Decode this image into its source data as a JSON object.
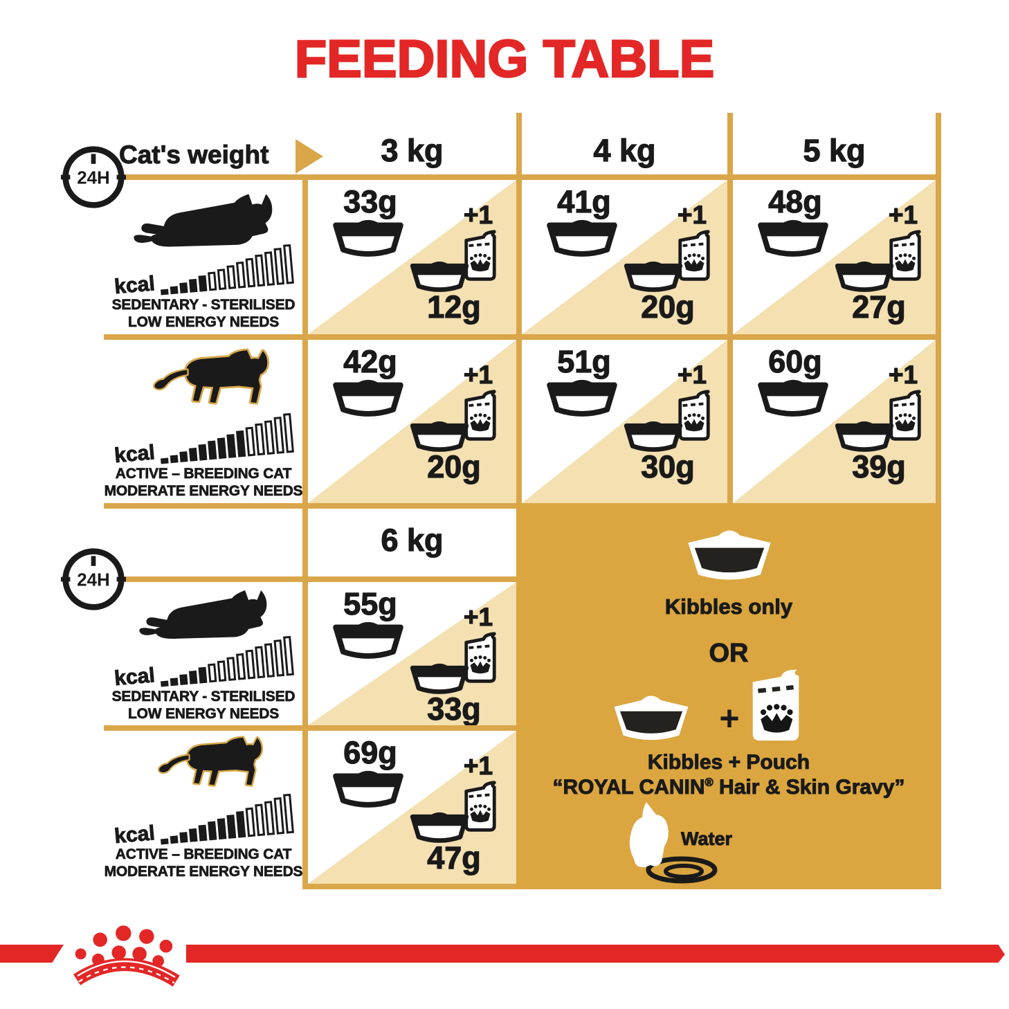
{
  "title": "FEEDING TABLE",
  "colors": {
    "red": "#E32726",
    "gold_line": "#DAA64A",
    "beige_triangle": "#F4E0B1",
    "legend_gold": "#DBA63F",
    "black": "#1A1A1A"
  },
  "header": {
    "row_label": "Cat's weight",
    "clock_label": "24H",
    "columns": [
      "3 kg",
      "4 kg",
      "5 kg"
    ],
    "extra_column": "6 kg"
  },
  "profiles": {
    "sedentary": {
      "kcal_label": "kcal",
      "kcal_bars": 14,
      "kcal_filled": 5,
      "caption1": "SEDENTARY - STERILISED",
      "caption2": "LOW ENERGY NEEDS"
    },
    "active": {
      "kcal_label": "kcal",
      "kcal_bars": 14,
      "kcal_filled": 9,
      "caption1": "ACTIVE – BREEDING CAT",
      "caption2": "MODERATE ENERGY NEEDS"
    }
  },
  "cells": {
    "sed_3kg": {
      "kibbles": "33g",
      "plus": "+1",
      "mixed": "12g"
    },
    "sed_4kg": {
      "kibbles": "41g",
      "plus": "+1",
      "mixed": "20g"
    },
    "sed_5kg": {
      "kibbles": "48g",
      "plus": "+1",
      "mixed": "27g"
    },
    "act_3kg": {
      "kibbles": "42g",
      "plus": "+1",
      "mixed": "20g"
    },
    "act_4kg": {
      "kibbles": "51g",
      "plus": "+1",
      "mixed": "30g"
    },
    "act_5kg": {
      "kibbles": "60g",
      "plus": "+1",
      "mixed": "39g"
    },
    "sed_6kg": {
      "kibbles": "55g",
      "plus": "+1",
      "mixed": "33g"
    },
    "act_6kg": {
      "kibbles": "69g",
      "plus": "+1",
      "mixed": "47g"
    }
  },
  "legend": {
    "kibbles_only": "Kibbles only",
    "or": "OR",
    "plus": "+",
    "mix_title": "Kibbles + Pouch",
    "mix_brand_pre": "“ROYAL CANIN",
    "mix_brand_reg": "®",
    "mix_brand_post": " Hair & Skin Gravy”",
    "water": "Water"
  }
}
